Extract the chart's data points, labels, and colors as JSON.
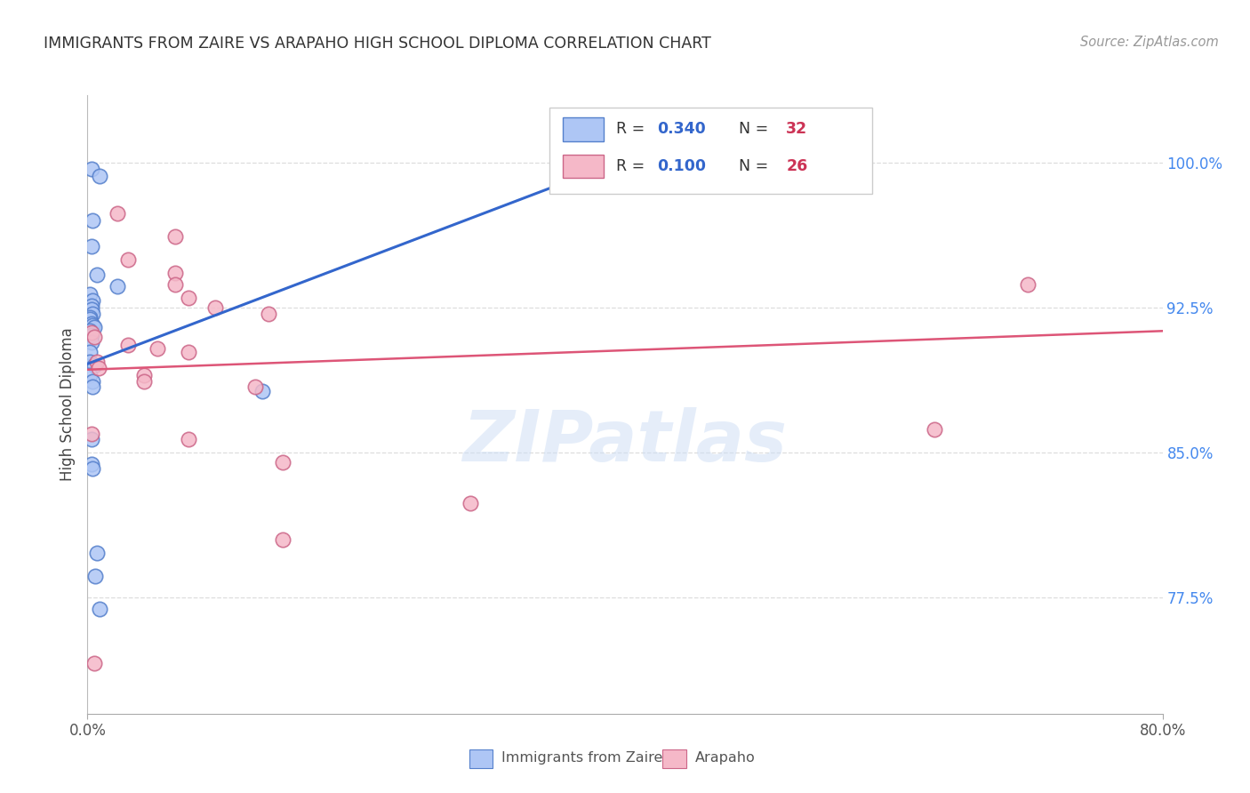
{
  "title": "IMMIGRANTS FROM ZAIRE VS ARAPAHO HIGH SCHOOL DIPLOMA CORRELATION CHART",
  "source_text": "Source: ZipAtlas.com",
  "ylabel": "High School Diploma",
  "ytick_labels": [
    "77.5%",
    "85.0%",
    "92.5%",
    "100.0%"
  ],
  "ytick_values": [
    0.775,
    0.85,
    0.925,
    1.0
  ],
  "xlim": [
    0.0,
    0.8
  ],
  "ylim": [
    0.715,
    1.035
  ],
  "watermark": "ZIPatlas",
  "legend_r1_label": "R = ",
  "legend_r1_val": "0.340",
  "legend_n1_label": "  N = ",
  "legend_n1_val": "32",
  "legend_r2_label": "R = ",
  "legend_r2_val": "0.100",
  "legend_n2_label": "  N = ",
  "legend_n2_val": "26",
  "blue_fill": "#aec6f5",
  "pink_fill": "#f5b8c8",
  "blue_edge": "#5580cc",
  "pink_edge": "#cc6688",
  "blue_line_color": "#3366cc",
  "pink_line_color": "#dd5577",
  "blue_scatter": [
    [
      0.003,
      0.997
    ],
    [
      0.009,
      0.993
    ],
    [
      0.004,
      0.97
    ],
    [
      0.003,
      0.957
    ],
    [
      0.007,
      0.942
    ],
    [
      0.022,
      0.936
    ],
    [
      0.002,
      0.932
    ],
    [
      0.004,
      0.929
    ],
    [
      0.003,
      0.926
    ],
    [
      0.003,
      0.924
    ],
    [
      0.004,
      0.922
    ],
    [
      0.002,
      0.92
    ],
    [
      0.002,
      0.919
    ],
    [
      0.003,
      0.917
    ],
    [
      0.004,
      0.916
    ],
    [
      0.005,
      0.915
    ],
    [
      0.002,
      0.913
    ],
    [
      0.003,
      0.911
    ],
    [
      0.003,
      0.907
    ],
    [
      0.002,
      0.902
    ],
    [
      0.002,
      0.897
    ],
    [
      0.005,
      0.895
    ],
    [
      0.002,
      0.89
    ],
    [
      0.004,
      0.887
    ],
    [
      0.004,
      0.884
    ],
    [
      0.13,
      0.882
    ],
    [
      0.003,
      0.857
    ],
    [
      0.003,
      0.844
    ],
    [
      0.004,
      0.842
    ],
    [
      0.007,
      0.798
    ],
    [
      0.006,
      0.786
    ],
    [
      0.009,
      0.769
    ]
  ],
  "pink_scatter": [
    [
      0.022,
      0.974
    ],
    [
      0.065,
      0.962
    ],
    [
      0.03,
      0.95
    ],
    [
      0.065,
      0.943
    ],
    [
      0.065,
      0.937
    ],
    [
      0.075,
      0.93
    ],
    [
      0.095,
      0.925
    ],
    [
      0.135,
      0.922
    ],
    [
      0.003,
      0.912
    ],
    [
      0.005,
      0.91
    ],
    [
      0.03,
      0.906
    ],
    [
      0.052,
      0.904
    ],
    [
      0.075,
      0.902
    ],
    [
      0.007,
      0.897
    ],
    [
      0.008,
      0.894
    ],
    [
      0.042,
      0.89
    ],
    [
      0.042,
      0.887
    ],
    [
      0.125,
      0.884
    ],
    [
      0.003,
      0.86
    ],
    [
      0.075,
      0.857
    ],
    [
      0.145,
      0.845
    ],
    [
      0.285,
      0.824
    ],
    [
      0.7,
      0.937
    ],
    [
      0.63,
      0.862
    ],
    [
      0.005,
      0.741
    ],
    [
      0.145,
      0.805
    ]
  ],
  "blue_line_x": [
    0.0,
    0.39
  ],
  "blue_line_y": [
    0.896,
    0.999
  ],
  "pink_line_x": [
    0.0,
    0.8
  ],
  "pink_line_y": [
    0.893,
    0.913
  ],
  "grid_color": "#dddddd",
  "bg_color": "#ffffff",
  "title_color": "#333333",
  "right_tick_color": "#4488ee",
  "label_color": "#555555"
}
